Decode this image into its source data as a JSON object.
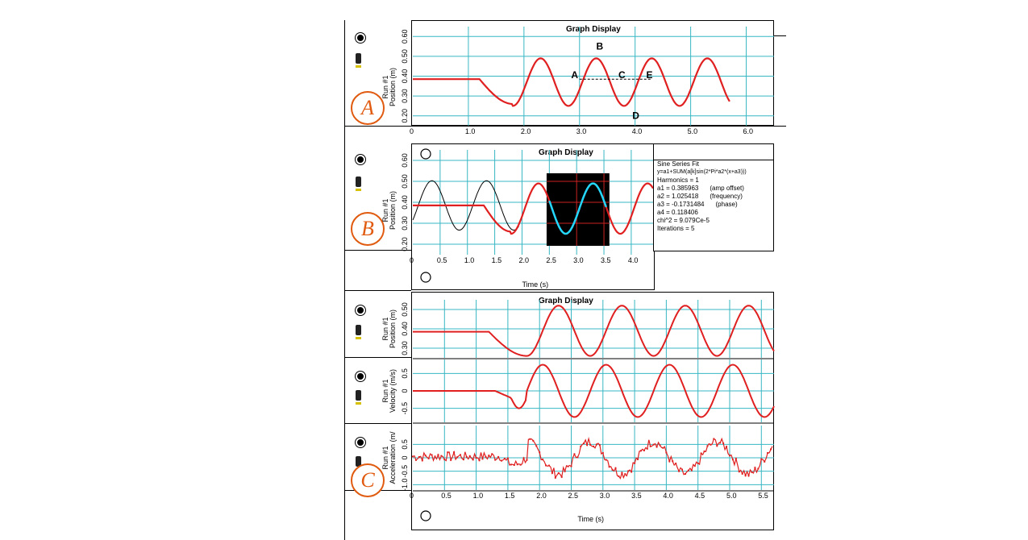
{
  "colors": {
    "grid": "#37b7c3",
    "curve": "#e02020",
    "fit": "#22d8ff",
    "caption": "#e05a10"
  },
  "panels": {
    "a": {
      "title": "Graph Display",
      "ylabel": "Position (m)",
      "run": "Run #1",
      "caption": "A",
      "yticks": [
        "0.20",
        "0.30",
        "0.40",
        "0.50",
        "0.60"
      ],
      "xticks": [
        "0",
        "1.0",
        "2.0",
        "3.0",
        "4.0",
        "5.0",
        "6.0"
      ],
      "point_labels": [
        "A",
        "B",
        "C",
        "D",
        "E"
      ]
    },
    "b": {
      "title": "Graph Display",
      "ylabel": "Position (m)",
      "run": "Run #1",
      "caption": "B",
      "xlabel": "Time (s)",
      "yticks": [
        "0.20",
        "0.30",
        "0.40",
        "0.50",
        "0.60"
      ],
      "xticks": [
        "0",
        "0.5",
        "1.0",
        "1.5",
        "2.0",
        "2.5",
        "3.0",
        "3.5",
        "4.0"
      ],
      "fit": {
        "heading": "Sine Series Fit",
        "formula": "y=a1+SUM(a[k]sin(2*Pi*a2*(x+a3)))",
        "harmonics": "Harmonics = 1",
        "rows": [
          {
            "k": "a1 =",
            "v": "0.385963",
            "n": "(amp offset)"
          },
          {
            "k": "a2 =",
            "v": "1.025418",
            "n": "(frequency)"
          },
          {
            "k": "a3 =",
            "v": "-0.1731484",
            "n": "(phase)"
          },
          {
            "k": "a4 =",
            "v": "0.118406",
            "n": ""
          },
          {
            "k": "chi^2 =",
            "v": "9.079Ce-5",
            "n": ""
          },
          {
            "k": "Iterations =",
            "v": "5",
            "n": ""
          }
        ]
      }
    },
    "c": {
      "title": "Graph Display",
      "caption": "C",
      "xlabel": "Time (s)",
      "run": "Run #1",
      "xticks": [
        "0",
        "0.5",
        "1.0",
        "1.5",
        "2.0",
        "2.5",
        "3.0",
        "3.5",
        "4.0",
        "4.5",
        "5.0",
        "5.5"
      ],
      "sub": [
        {
          "ylabel": "Position (m)",
          "yticks": [
            "0.30",
            "0.40",
            "0.50"
          ]
        },
        {
          "ylabel": "Velocity (m/s)",
          "yticks": [
            "-0.5",
            "0",
            "0.5"
          ]
        },
        {
          "ylabel": "Acceleration (m/",
          "yticks": [
            "-1.0",
            "-0.5",
            "0",
            "0.5"
          ]
        }
      ]
    }
  },
  "chart_data": [
    {
      "type": "line",
      "title": "Graph Display",
      "xlabel": "",
      "ylabel": "Position (m)",
      "xlim": [
        0,
        6.5
      ],
      "ylim": [
        0.15,
        0.65
      ],
      "series": [
        {
          "name": "Run #1",
          "equilibrium": 0.385,
          "amplitude": 0.12,
          "period": 1.0,
          "start_time": 1.2,
          "x": [
            0,
            1.2,
            1.8,
            2.3,
            2.8,
            3.3,
            3.8,
            4.3,
            4.8,
            5.3,
            5.7
          ],
          "y": [
            0.385,
            0.385,
            0.26,
            0.49,
            0.25,
            0.49,
            0.25,
            0.49,
            0.25,
            0.49,
            0.28
          ]
        }
      ],
      "annotations": [
        "A",
        "B",
        "C",
        "D",
        "E"
      ]
    },
    {
      "type": "line",
      "title": "Graph Display",
      "xlabel": "Time (s)",
      "ylabel": "Position (m)",
      "xlim": [
        0,
        4.4
      ],
      "ylim": [
        0.15,
        0.65
      ],
      "series": [
        {
          "name": "Run #1",
          "x": [
            0,
            1.3,
            1.8,
            2.3,
            2.8,
            3.3,
            3.8,
            4.3
          ],
          "y": [
            0.385,
            0.385,
            0.26,
            0.49,
            0.25,
            0.49,
            0.25,
            0.49
          ]
        },
        {
          "name": "Sine Series Fit",
          "x": [
            0,
            0.35,
            0.85,
            1.35,
            1.85
          ],
          "y": [
            0.26,
            0.5,
            0.27,
            0.5,
            0.27
          ]
        }
      ],
      "fit_params": {
        "a1": 0.385963,
        "a2": 1.025418,
        "a3": -0.1731484,
        "a4": 0.118406
      }
    },
    {
      "type": "line",
      "title": "Graph Display",
      "xlabel": "Time (s)",
      "ylabel": "Position (m)",
      "xlim": [
        0,
        5.7
      ],
      "ylim": [
        0.25,
        0.55
      ],
      "series": [
        {
          "name": "Run #1",
          "x": [
            0,
            1.2,
            1.8,
            2.3,
            2.8,
            3.3,
            3.8,
            4.3,
            4.8,
            5.3,
            5.7
          ],
          "y": [
            0.385,
            0.385,
            0.26,
            0.52,
            0.26,
            0.52,
            0.26,
            0.52,
            0.26,
            0.52,
            0.27
          ]
        }
      ]
    },
    {
      "type": "line",
      "title": "",
      "xlabel": "Time (s)",
      "ylabel": "Velocity (m/s)",
      "xlim": [
        0,
        5.7
      ],
      "ylim": [
        -0.9,
        0.9
      ],
      "series": [
        {
          "name": "Run #1",
          "x": [
            0,
            1.3,
            1.55,
            2.05,
            2.55,
            3.05,
            3.55,
            4.05,
            4.55,
            5.05,
            5.55
          ],
          "y": [
            0,
            0,
            -0.2,
            0.75,
            -0.75,
            0.75,
            -0.75,
            0.75,
            -0.75,
            0.75,
            -0.4
          ]
        }
      ]
    },
    {
      "type": "line",
      "title": "",
      "xlabel": "Time (s)",
      "ylabel": "Acceleration (m/",
      "xlim": [
        0,
        5.7
      ],
      "ylim": [
        -1.2,
        1.2
      ],
      "series": [
        {
          "name": "Run #1",
          "x": [
            0,
            1.4,
            1.8,
            2.3,
            2.8,
            3.3,
            3.8,
            4.3,
            4.8,
            5.3,
            5.7
          ],
          "y": [
            0,
            0,
            -0.3,
            0.6,
            -0.6,
            0.6,
            -0.6,
            0.6,
            -0.6,
            0.6,
            0.3
          ]
        }
      ]
    }
  ]
}
